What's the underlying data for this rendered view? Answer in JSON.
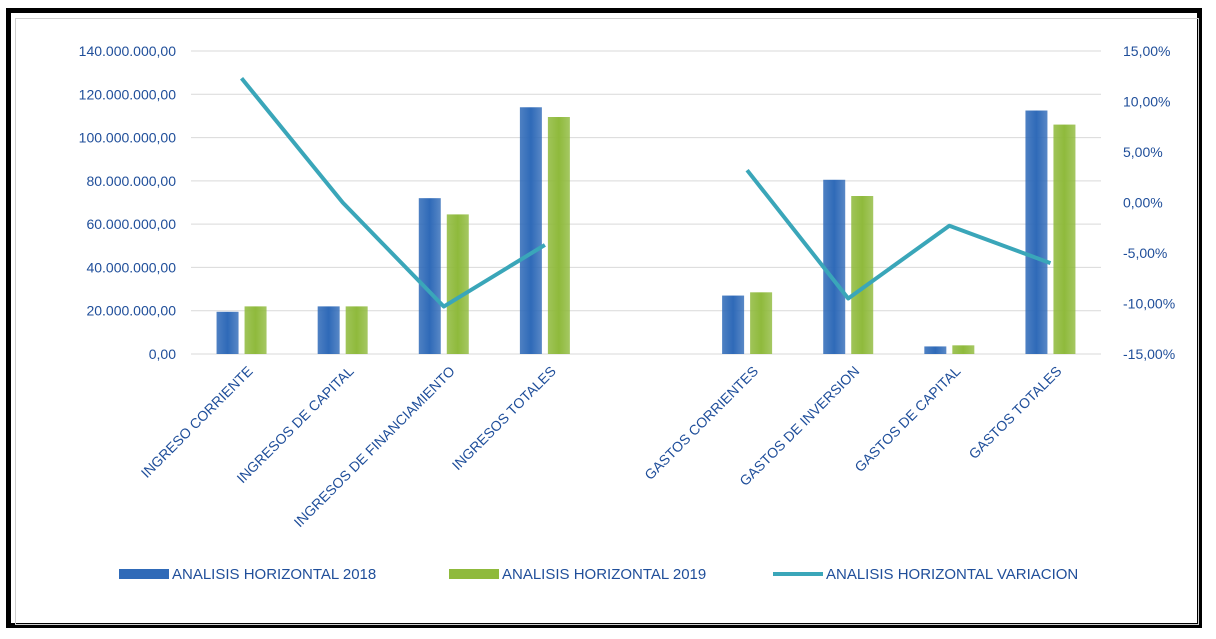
{
  "chart_data": {
    "type": "bar",
    "categories": [
      "INGRESO CORRIENTE",
      "INGRESOS DE CAPITAL",
      "INGRESOS DE FINANCIAMIENTO",
      "INGRESOS TOTALES",
      "",
      "GASTOS CORRIENTES",
      "GASTOS DE INVERSION",
      "GASTOS DE CAPITAL",
      "GASTOS TOTALES"
    ],
    "series": [
      {
        "name": "ANALISIS HORIZONTAL 2018",
        "type": "bar",
        "axis": "left",
        "color": "#2f6ab8",
        "values": [
          19500000,
          22000000,
          72000000,
          114000000,
          null,
          27000000,
          80500000,
          3500000,
          112500000
        ]
      },
      {
        "name": "ANALISIS HORIZONTAL 2019",
        "type": "bar",
        "axis": "left",
        "color": "#8fba3c",
        "values": [
          22000000,
          22000000,
          64500000,
          109500000,
          null,
          28500000,
          73000000,
          4000000,
          106000000
        ]
      },
      {
        "name": "ANALISIS HORIZONTAL VARIACION",
        "type": "line",
        "axis": "right",
        "color": "#3aa6b9",
        "values": [
          12.3,
          0.0,
          -10.3,
          -4.2,
          null,
          3.2,
          -9.5,
          -2.3,
          -6.0
        ]
      }
    ],
    "y_left": {
      "ylim": [
        0,
        140000000
      ],
      "ticks": [
        0,
        20000000,
        40000000,
        60000000,
        80000000,
        100000000,
        120000000,
        140000000
      ],
      "tick_labels": [
        "0,00",
        "20.000.000,00",
        "40.000.000,00",
        "60.000.000,00",
        "80.000.000,00",
        "100.000.000,00",
        "120.000.000,00",
        "140.000.000,00"
      ]
    },
    "y_right": {
      "ylim": [
        -15,
        15
      ],
      "ticks": [
        -15,
        -10,
        -5,
        0,
        5,
        10,
        15
      ],
      "tick_labels": [
        "-15,00%",
        "-10,00%",
        "-5,00%",
        "0,00%",
        "5,00%",
        "10,00%",
        "15,00%"
      ]
    },
    "grid": true,
    "legend": "bottom",
    "colors": {
      "bar2018": "#2f6ab8",
      "bar2019": "#8fba3c",
      "line": "#3aa6b9",
      "tick_text": "#1f4e9a",
      "grid": "#d9d9d9"
    }
  }
}
